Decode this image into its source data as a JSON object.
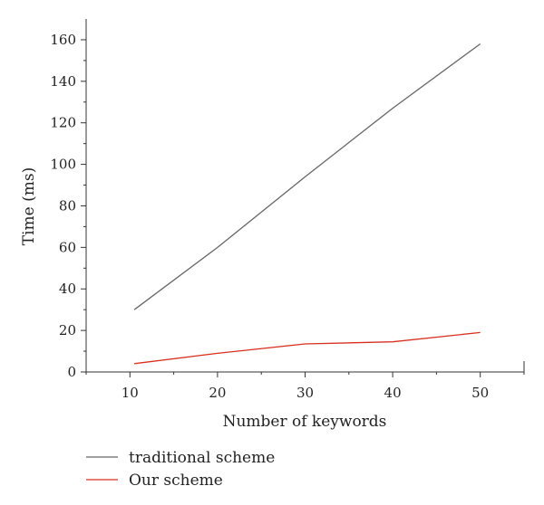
{
  "chart_data": {
    "type": "line",
    "xlabel": "Number of keywords",
    "ylabel": "Time (ms)",
    "x": [
      10,
      20,
      30,
      40,
      50
    ],
    "xlim": [
      5,
      55
    ],
    "ylim": [
      0,
      170
    ],
    "xticks": [
      10,
      20,
      30,
      40,
      50
    ],
    "yticks": [
      0,
      20,
      40,
      60,
      80,
      100,
      120,
      140,
      160
    ],
    "grid": false,
    "legend_position": "bottom-left",
    "series": [
      {
        "name": "traditional scheme",
        "color": "#666666",
        "x": [
          10.5,
          20,
          30,
          40,
          50
        ],
        "values": [
          30,
          60,
          94,
          127,
          158
        ]
      },
      {
        "name": "Our scheme",
        "color": "#d7301f",
        "x": [
          10.5,
          20,
          30,
          40,
          50
        ],
        "values": [
          4,
          9,
          13.5,
          14.5,
          19
        ]
      }
    ]
  }
}
